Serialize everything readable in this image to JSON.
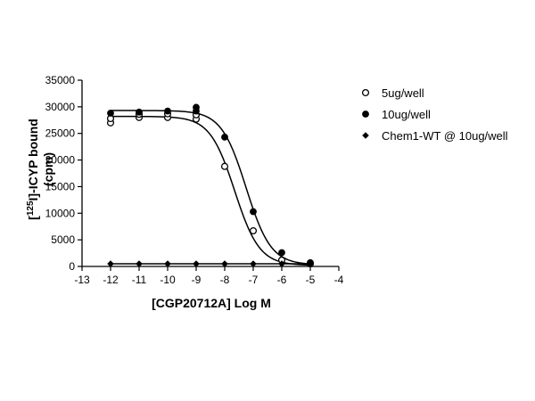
{
  "chart_data": {
    "type": "scatter",
    "xlabel": "[CGP20712A] Log M",
    "ylabel_line1_pre": "[",
    "ylabel_sup": "125",
    "ylabel_line1_post": "I]-ICYP bound",
    "ylabel_line2": "(cpm)",
    "xlim": [
      -13,
      -4
    ],
    "ylim": [
      0,
      35000
    ],
    "x_ticks": [
      -13,
      -12,
      -11,
      -10,
      -9,
      -8,
      -7,
      -6,
      -5,
      -4
    ],
    "y_ticks": [
      0,
      5000,
      10000,
      15000,
      20000,
      25000,
      30000,
      35000
    ],
    "x_tick_labels": [
      "-13",
      "-12",
      "-11",
      "-10",
      "-9",
      "-8",
      "-7",
      "-6",
      "-5",
      "-4"
    ],
    "y_tick_labels": [
      "0",
      "5000",
      "10000",
      "15000",
      "20000",
      "25000",
      "30000",
      "35000"
    ],
    "grid": false,
    "legend_position": "right",
    "series": [
      {
        "name": "5ug/well",
        "marker": "open-circle",
        "x": [
          -12,
          -12,
          -11,
          -11,
          -10,
          -10,
          -9,
          -9,
          -8,
          -7,
          -6,
          -5
        ],
        "y": [
          27000,
          27800,
          28000,
          28600,
          28000,
          28700,
          27700,
          28500,
          18800,
          6700,
          1200,
          500
        ],
        "fit": {
          "top": 28200,
          "bottom": 200,
          "logIC50": -7.65,
          "hill": -1
        }
      },
      {
        "name": "10ug/well",
        "marker": "filled-circle",
        "x": [
          -12,
          -11,
          -10,
          -9,
          -9,
          -8,
          -7,
          -6,
          -5
        ],
        "y": [
          28800,
          29000,
          29200,
          29200,
          29900,
          24300,
          10300,
          2600,
          700
        ],
        "fit": {
          "top": 29300,
          "bottom": 300,
          "logIC50": -7.25,
          "hill": -1
        }
      },
      {
        "name": "Chem1-WT @ 10ug/well",
        "marker": "filled-diamond",
        "x": [
          -12,
          -11,
          -10,
          -9,
          -8,
          -7,
          -6,
          -5
        ],
        "y": [
          500,
          500,
          500,
          500,
          500,
          500,
          500,
          500
        ],
        "fit": {
          "flat": 500
        }
      }
    ]
  }
}
